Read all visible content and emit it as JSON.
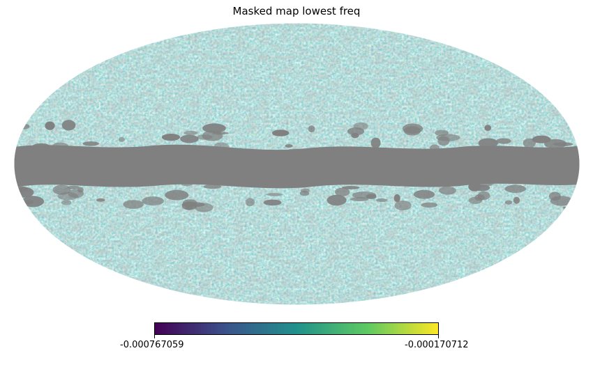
{
  "title": "Masked map lowest freq",
  "projection": "Mollweide",
  "map": {
    "masked_color": "#808080",
    "mask_description": "Galactic plane band masked in grey"
  },
  "colorbar": {
    "colormap": "viridis",
    "min_label": "-0.000767059",
    "max_label": "-0.000170712",
    "stops": [
      "#440154",
      "#3b528b",
      "#21918c",
      "#5ec962",
      "#fde725"
    ]
  }
}
